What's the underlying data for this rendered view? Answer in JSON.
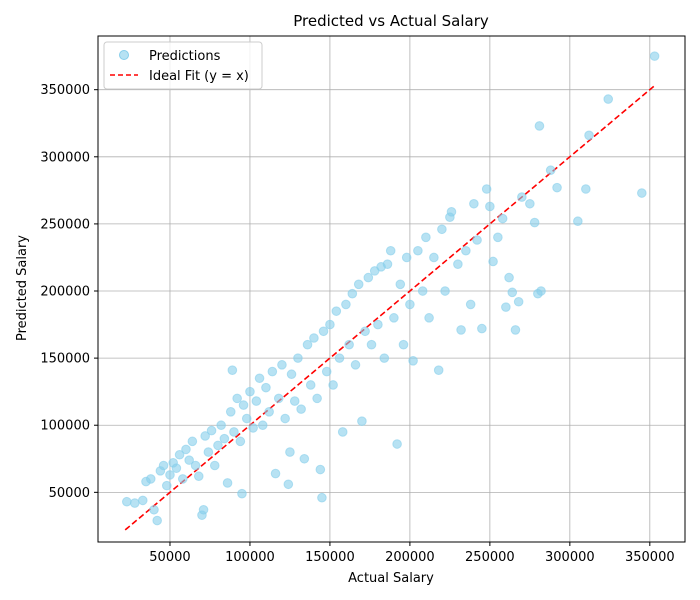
{
  "chart_data": {
    "type": "scatter",
    "title": "Predicted vs Actual Salary",
    "xlabel": "Actual Salary",
    "ylabel": "Predicted Salary",
    "xlim": [
      5000,
      372000
    ],
    "ylim": [
      13000,
      390000
    ],
    "xticks": [
      50000,
      100000,
      150000,
      200000,
      250000,
      300000,
      350000
    ],
    "yticks": [
      50000,
      100000,
      150000,
      200000,
      250000,
      300000,
      350000
    ],
    "grid": true,
    "legend_position": "top-left",
    "colors": {
      "points": "#87CEEB",
      "ideal_line": "#FF0000",
      "grid": "#b0b0b0"
    },
    "series": [
      {
        "name": "Predictions",
        "kind": "scatter",
        "points": [
          [
            23000,
            43000
          ],
          [
            28000,
            42000
          ],
          [
            33000,
            44000
          ],
          [
            35000,
            58000
          ],
          [
            38000,
            60000
          ],
          [
            40000,
            37000
          ],
          [
            42000,
            29000
          ],
          [
            44000,
            66000
          ],
          [
            46000,
            70000
          ],
          [
            48000,
            55000
          ],
          [
            50000,
            63000
          ],
          [
            52000,
            72000
          ],
          [
            54000,
            68000
          ],
          [
            56000,
            78000
          ],
          [
            58000,
            60000
          ],
          [
            60000,
            82000
          ],
          [
            62000,
            74000
          ],
          [
            64000,
            88000
          ],
          [
            66000,
            70000
          ],
          [
            68000,
            62000
          ],
          [
            70000,
            33000
          ],
          [
            71000,
            37000
          ],
          [
            72000,
            92000
          ],
          [
            74000,
            80000
          ],
          [
            76000,
            96000
          ],
          [
            78000,
            70000
          ],
          [
            80000,
            85000
          ],
          [
            82000,
            100000
          ],
          [
            84000,
            90000
          ],
          [
            86000,
            57000
          ],
          [
            88000,
            110000
          ],
          [
            89000,
            141000
          ],
          [
            90000,
            95000
          ],
          [
            92000,
            120000
          ],
          [
            94000,
            88000
          ],
          [
            95000,
            49000
          ],
          [
            96000,
            115000
          ],
          [
            98000,
            105000
          ],
          [
            100000,
            125000
          ],
          [
            102000,
            98000
          ],
          [
            104000,
            118000
          ],
          [
            106000,
            135000
          ],
          [
            108000,
            100000
          ],
          [
            110000,
            128000
          ],
          [
            112000,
            110000
          ],
          [
            114000,
            140000
          ],
          [
            116000,
            64000
          ],
          [
            118000,
            120000
          ],
          [
            120000,
            145000
          ],
          [
            122000,
            105000
          ],
          [
            124000,
            56000
          ],
          [
            125000,
            80000
          ],
          [
            126000,
            138000
          ],
          [
            128000,
            118000
          ],
          [
            130000,
            150000
          ],
          [
            132000,
            112000
          ],
          [
            134000,
            75000
          ],
          [
            136000,
            160000
          ],
          [
            138000,
            130000
          ],
          [
            140000,
            165000
          ],
          [
            142000,
            120000
          ],
          [
            144000,
            67000
          ],
          [
            145000,
            46000
          ],
          [
            146000,
            170000
          ],
          [
            148000,
            140000
          ],
          [
            150000,
            175000
          ],
          [
            152000,
            130000
          ],
          [
            154000,
            185000
          ],
          [
            156000,
            150000
          ],
          [
            158000,
            95000
          ],
          [
            160000,
            190000
          ],
          [
            162000,
            160000
          ],
          [
            164000,
            198000
          ],
          [
            166000,
            145000
          ],
          [
            168000,
            205000
          ],
          [
            170000,
            103000
          ],
          [
            172000,
            170000
          ],
          [
            174000,
            210000
          ],
          [
            176000,
            160000
          ],
          [
            178000,
            215000
          ],
          [
            180000,
            175000
          ],
          [
            182000,
            218000
          ],
          [
            184000,
            150000
          ],
          [
            186000,
            220000
          ],
          [
            188000,
            230000
          ],
          [
            190000,
            180000
          ],
          [
            192000,
            86000
          ],
          [
            194000,
            205000
          ],
          [
            196000,
            160000
          ],
          [
            198000,
            225000
          ],
          [
            200000,
            190000
          ],
          [
            202000,
            148000
          ],
          [
            205000,
            230000
          ],
          [
            208000,
            200000
          ],
          [
            210000,
            240000
          ],
          [
            212000,
            180000
          ],
          [
            215000,
            225000
          ],
          [
            218000,
            141000
          ],
          [
            220000,
            246000
          ],
          [
            222000,
            200000
          ],
          [
            225000,
            255000
          ],
          [
            226000,
            259000
          ],
          [
            230000,
            220000
          ],
          [
            232000,
            171000
          ],
          [
            235000,
            230000
          ],
          [
            238000,
            190000
          ],
          [
            240000,
            265000
          ],
          [
            242000,
            238000
          ],
          [
            245000,
            172000
          ],
          [
            248000,
            276000
          ],
          [
            250000,
            263000
          ],
          [
            252000,
            222000
          ],
          [
            255000,
            240000
          ],
          [
            258000,
            254000
          ],
          [
            260000,
            188000
          ],
          [
            262000,
            210000
          ],
          [
            264000,
            199000
          ],
          [
            266000,
            171000
          ],
          [
            268000,
            192000
          ],
          [
            270000,
            270000
          ],
          [
            275000,
            265000
          ],
          [
            278000,
            251000
          ],
          [
            280000,
            198000
          ],
          [
            281000,
            323000
          ],
          [
            282000,
            200000
          ],
          [
            288000,
            290000
          ],
          [
            292000,
            277000
          ],
          [
            305000,
            252000
          ],
          [
            310000,
            276000
          ],
          [
            312000,
            316000
          ],
          [
            324000,
            343000
          ],
          [
            345000,
            273000
          ],
          [
            353000,
            375000
          ]
        ]
      },
      {
        "name": "Ideal Fit (y = x)",
        "kind": "line",
        "x": [
          22000,
          353000
        ],
        "y": [
          22000,
          353000
        ]
      }
    ]
  }
}
